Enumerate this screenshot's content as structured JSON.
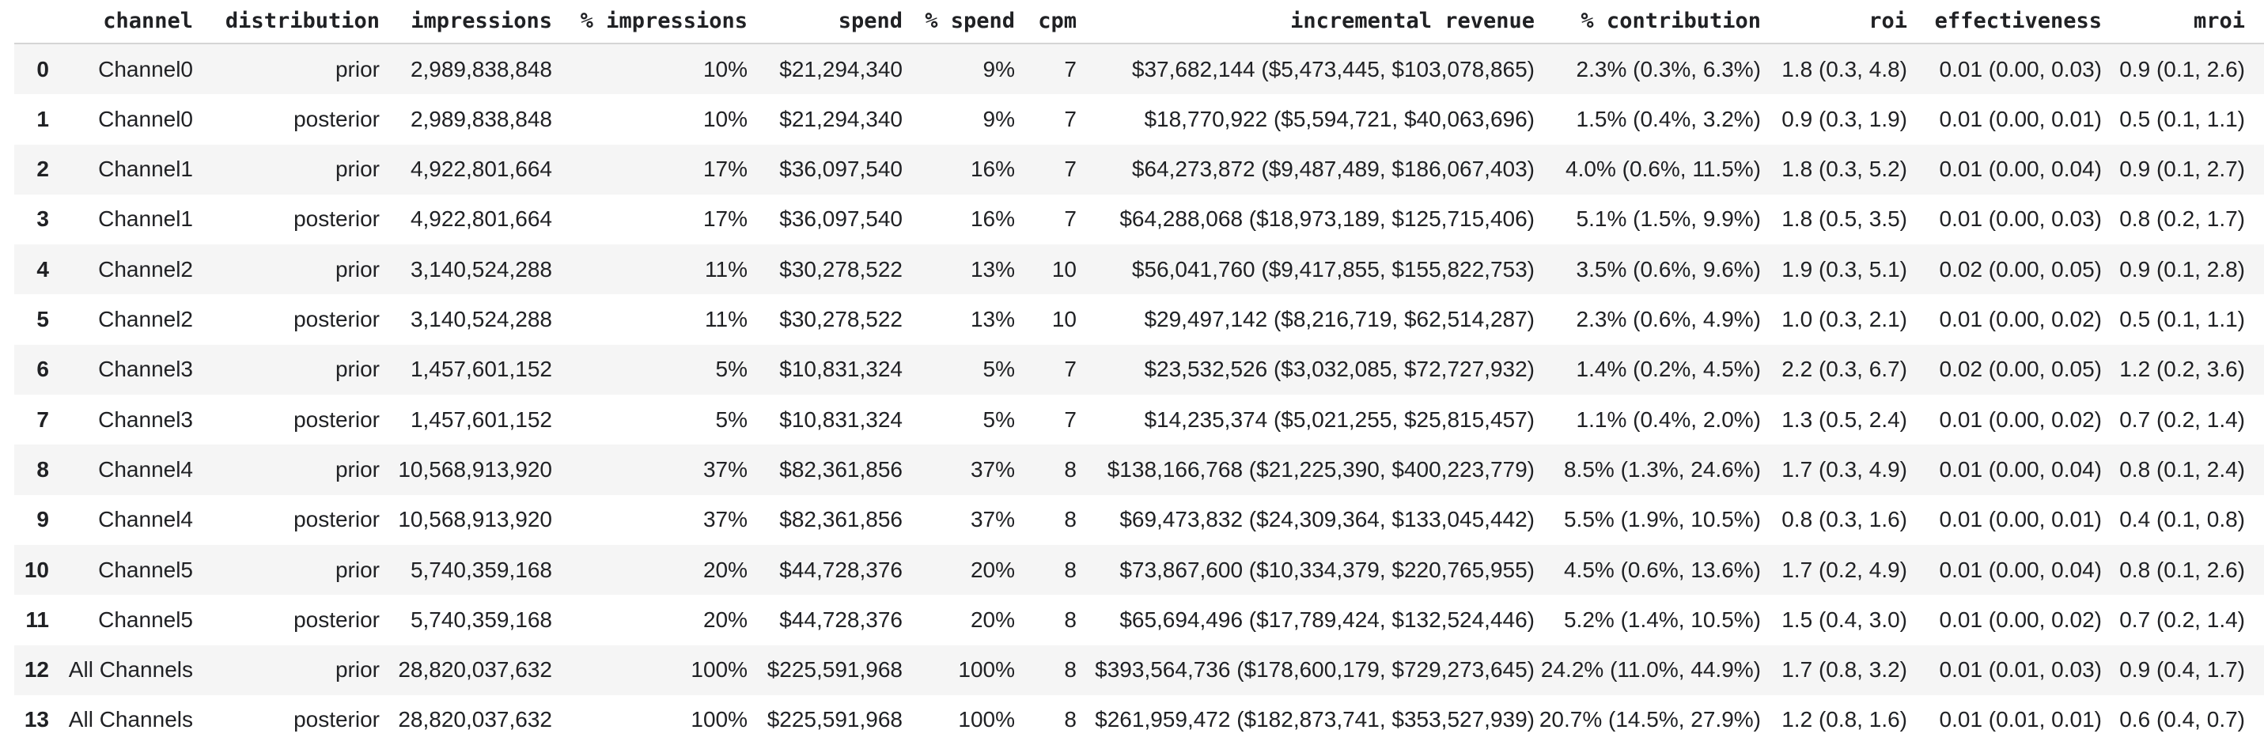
{
  "colors": {
    "row_stripe": "#f5f5f5",
    "header_rule": "#d5d5d5",
    "text": "#202124",
    "background": "#ffffff"
  },
  "table": {
    "columns": [
      "channel",
      "distribution",
      "impressions",
      "% impressions",
      "spend",
      "% spend",
      "cpm",
      "incremental revenue",
      "% contribution",
      "roi",
      "effectiveness",
      "mroi"
    ],
    "rows": [
      {
        "index": "0",
        "cells": [
          "Channel0",
          "prior",
          "2,989,838,848",
          "10%",
          "$21,294,340",
          "9%",
          "7",
          "$37,682,144 ($5,473,445, $103,078,865)",
          "2.3% (0.3%, 6.3%)",
          "1.8 (0.3, 4.8)",
          "0.01 (0.00, 0.03)",
          "0.9 (0.1, 2.6)"
        ]
      },
      {
        "index": "1",
        "cells": [
          "Channel0",
          "posterior",
          "2,989,838,848",
          "10%",
          "$21,294,340",
          "9%",
          "7",
          "$18,770,922 ($5,594,721, $40,063,696)",
          "1.5% (0.4%, 3.2%)",
          "0.9 (0.3, 1.9)",
          "0.01 (0.00, 0.01)",
          "0.5 (0.1, 1.1)"
        ]
      },
      {
        "index": "2",
        "cells": [
          "Channel1",
          "prior",
          "4,922,801,664",
          "17%",
          "$36,097,540",
          "16%",
          "7",
          "$64,273,872 ($9,487,489, $186,067,403)",
          "4.0% (0.6%, 11.5%)",
          "1.8 (0.3, 5.2)",
          "0.01 (0.00, 0.04)",
          "0.9 (0.1, 2.7)"
        ]
      },
      {
        "index": "3",
        "cells": [
          "Channel1",
          "posterior",
          "4,922,801,664",
          "17%",
          "$36,097,540",
          "16%",
          "7",
          "$64,288,068 ($18,973,189, $125,715,406)",
          "5.1% (1.5%, 9.9%)",
          "1.8 (0.5, 3.5)",
          "0.01 (0.00, 0.03)",
          "0.8 (0.2, 1.7)"
        ]
      },
      {
        "index": "4",
        "cells": [
          "Channel2",
          "prior",
          "3,140,524,288",
          "11%",
          "$30,278,522",
          "13%",
          "10",
          "$56,041,760 ($9,417,855, $155,822,753)",
          "3.5% (0.6%, 9.6%)",
          "1.9 (0.3, 5.1)",
          "0.02 (0.00, 0.05)",
          "0.9 (0.1, 2.8)"
        ]
      },
      {
        "index": "5",
        "cells": [
          "Channel2",
          "posterior",
          "3,140,524,288",
          "11%",
          "$30,278,522",
          "13%",
          "10",
          "$29,497,142 ($8,216,719, $62,514,287)",
          "2.3% (0.6%, 4.9%)",
          "1.0 (0.3, 2.1)",
          "0.01 (0.00, 0.02)",
          "0.5 (0.1, 1.1)"
        ]
      },
      {
        "index": "6",
        "cells": [
          "Channel3",
          "prior",
          "1,457,601,152",
          "5%",
          "$10,831,324",
          "5%",
          "7",
          "$23,532,526 ($3,032,085, $72,727,932)",
          "1.4% (0.2%, 4.5%)",
          "2.2 (0.3, 6.7)",
          "0.02 (0.00, 0.05)",
          "1.2 (0.2, 3.6)"
        ]
      },
      {
        "index": "7",
        "cells": [
          "Channel3",
          "posterior",
          "1,457,601,152",
          "5%",
          "$10,831,324",
          "5%",
          "7",
          "$14,235,374 ($5,021,255, $25,815,457)",
          "1.1% (0.4%, 2.0%)",
          "1.3 (0.5, 2.4)",
          "0.01 (0.00, 0.02)",
          "0.7 (0.2, 1.4)"
        ]
      },
      {
        "index": "8",
        "cells": [
          "Channel4",
          "prior",
          "10,568,913,920",
          "37%",
          "$82,361,856",
          "37%",
          "8",
          "$138,166,768 ($21,225,390, $400,223,779)",
          "8.5% (1.3%, 24.6%)",
          "1.7 (0.3, 4.9)",
          "0.01 (0.00, 0.04)",
          "0.8 (0.1, 2.4)"
        ]
      },
      {
        "index": "9",
        "cells": [
          "Channel4",
          "posterior",
          "10,568,913,920",
          "37%",
          "$82,361,856",
          "37%",
          "8",
          "$69,473,832 ($24,309,364, $133,045,442)",
          "5.5% (1.9%, 10.5%)",
          "0.8 (0.3, 1.6)",
          "0.01 (0.00, 0.01)",
          "0.4 (0.1, 0.8)"
        ]
      },
      {
        "index": "10",
        "cells": [
          "Channel5",
          "prior",
          "5,740,359,168",
          "20%",
          "$44,728,376",
          "20%",
          "8",
          "$73,867,600 ($10,334,379, $220,765,955)",
          "4.5% (0.6%, 13.6%)",
          "1.7 (0.2, 4.9)",
          "0.01 (0.00, 0.04)",
          "0.8 (0.1, 2.6)"
        ]
      },
      {
        "index": "11",
        "cells": [
          "Channel5",
          "posterior",
          "5,740,359,168",
          "20%",
          "$44,728,376",
          "20%",
          "8",
          "$65,694,496 ($17,789,424, $132,524,446)",
          "5.2% (1.4%, 10.5%)",
          "1.5 (0.4, 3.0)",
          "0.01 (0.00, 0.02)",
          "0.7 (0.2, 1.4)"
        ]
      },
      {
        "index": "12",
        "cells": [
          "All Channels",
          "prior",
          "28,820,037,632",
          "100%",
          "$225,591,968",
          "100%",
          "8",
          "$393,564,736 ($178,600,179, $729,273,645)",
          "24.2% (11.0%, 44.9%)",
          "1.7 (0.8, 3.2)",
          "0.01 (0.01, 0.03)",
          "0.9 (0.4, 1.7)"
        ]
      },
      {
        "index": "13",
        "cells": [
          "All Channels",
          "posterior",
          "28,820,037,632",
          "100%",
          "$225,591,968",
          "100%",
          "8",
          "$261,959,472 ($182,873,741, $353,527,939)",
          "20.7% (14.5%, 27.9%)",
          "1.2 (0.8, 1.6)",
          "0.01 (0.01, 0.01)",
          "0.6 (0.4, 0.7)"
        ]
      }
    ]
  }
}
